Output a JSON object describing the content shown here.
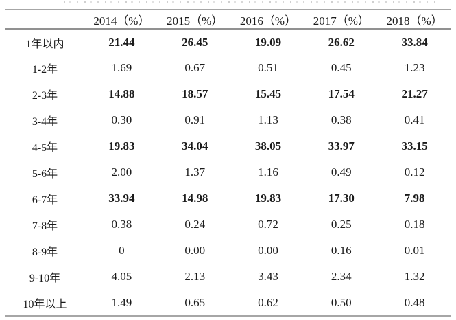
{
  "table": {
    "columns": [
      "",
      "2014（%）",
      "2015（%）",
      "2016（%）",
      "2017（%）",
      "2018（%）"
    ],
    "rows": [
      {
        "label": "1年以内",
        "values": [
          "21.44",
          "26.45",
          "19.09",
          "26.62",
          "33.84"
        ],
        "bold": true
      },
      {
        "label": "1-2年",
        "values": [
          "1.69",
          "0.67",
          "0.51",
          "0.45",
          "1.23"
        ],
        "bold": false
      },
      {
        "label": "2-3年",
        "values": [
          "14.88",
          "18.57",
          "15.45",
          "17.54",
          "21.27"
        ],
        "bold": true
      },
      {
        "label": "3-4年",
        "values": [
          "0.30",
          "0.91",
          "1.13",
          "0.38",
          "0.41"
        ],
        "bold": false
      },
      {
        "label": "4-5年",
        "values": [
          "19.83",
          "34.04",
          "38.05",
          "33.97",
          "33.15"
        ],
        "bold": true
      },
      {
        "label": "5-6年",
        "values": [
          "2.00",
          "1.37",
          "1.16",
          "0.49",
          "0.12"
        ],
        "bold": false
      },
      {
        "label": "6-7年",
        "values": [
          "33.94",
          "14.98",
          "19.83",
          "17.30",
          "7.98"
        ],
        "bold": true
      },
      {
        "label": "7-8年",
        "values": [
          "0.38",
          "0.24",
          "0.72",
          "0.25",
          "0.18"
        ],
        "bold": false
      },
      {
        "label": "8-9年",
        "values": [
          "0",
          "0.00",
          "0.00",
          "0.16",
          "0.01"
        ],
        "bold": false
      },
      {
        "label": "9-10年",
        "values": [
          "4.05",
          "2.13",
          "3.43",
          "2.34",
          "1.32"
        ],
        "bold": false
      },
      {
        "label": "10年以上",
        "values": [
          "1.49",
          "0.65",
          "0.62",
          "0.50",
          "0.48"
        ],
        "bold": false
      }
    ]
  },
  "colors": {
    "rule_outer": "#a6a6a6",
    "rule_header": "#919191",
    "text": "#1b1b1b",
    "background": "#ffffff"
  }
}
